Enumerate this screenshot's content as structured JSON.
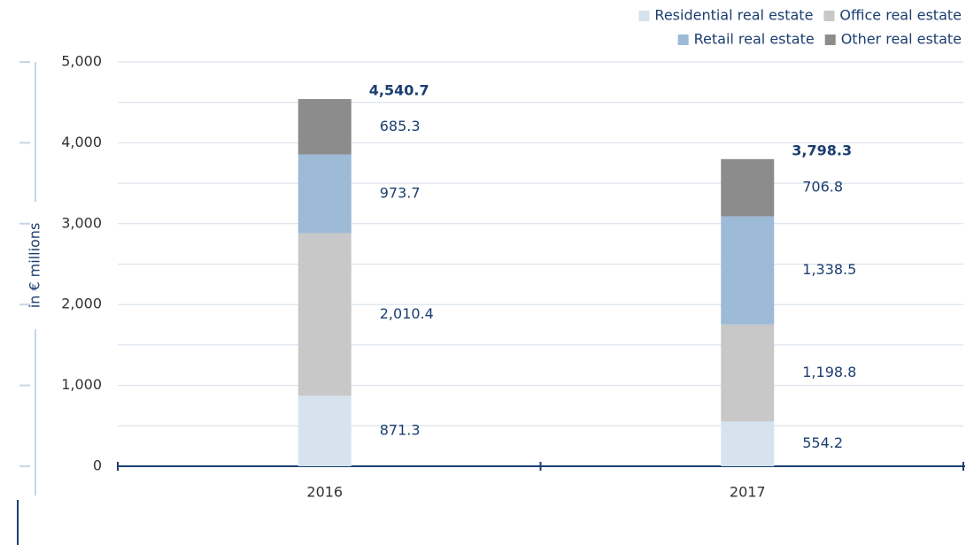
{
  "chart_data": {
    "type": "stacked_bar",
    "y_label": "in € millions",
    "categories": [
      "2016",
      "2017"
    ],
    "series": [
      {
        "name": "Residential real estate",
        "color": "#d6e3ef",
        "values": [
          871.3,
          554.2
        ],
        "value_labels": [
          "871.3",
          "554.2"
        ]
      },
      {
        "name": "Office real estate",
        "color": "#c8c8c8",
        "values": [
          2010.4,
          1198.8
        ],
        "value_labels": [
          "2,010.4",
          "1,198.8"
        ]
      },
      {
        "name": "Retail real estate",
        "color": "#9dbad6",
        "values": [
          973.7,
          1338.5
        ],
        "value_labels": [
          "973.7",
          "1,338.5"
        ]
      },
      {
        "name": "Other real estate",
        "color": "#8c8c8c",
        "values": [
          685.3,
          706.8
        ],
        "value_labels": [
          "685.3",
          "706.8"
        ]
      }
    ],
    "totals": [
      4540.7,
      3798.3
    ],
    "total_labels": [
      "4,540.7",
      "3,798.3"
    ],
    "ylim": [
      0,
      5000
    ],
    "yticks": [
      {
        "value": 0,
        "label": "0"
      },
      {
        "value": 1000,
        "label": "1,000"
      },
      {
        "value": 2000,
        "label": "2,000"
      },
      {
        "value": 3000,
        "label": "3,000"
      },
      {
        "value": 4000,
        "label": "4,000"
      },
      {
        "value": 5000,
        "label": "5,000"
      }
    ],
    "y_minor_ticks": [
      500,
      1500,
      2500,
      3500,
      4500
    ],
    "grid": true,
    "legend": "top-right"
  }
}
